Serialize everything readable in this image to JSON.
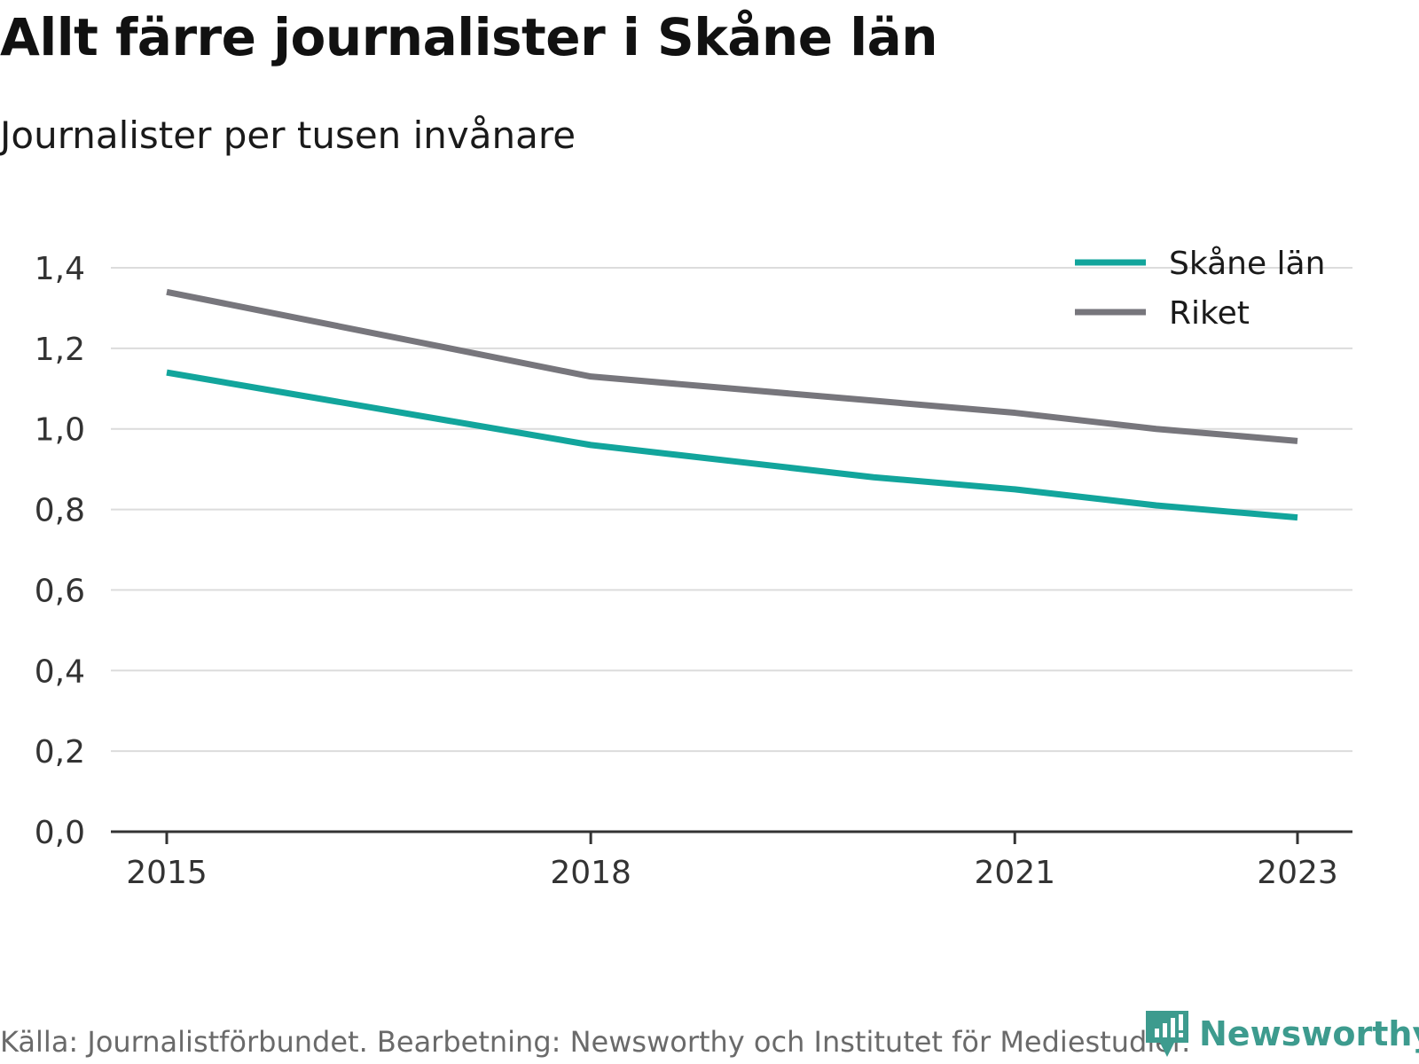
{
  "title": "Allt färre journalister i Skåne län",
  "subtitle": "Journalister per tusen invånare",
  "source": "Källa: Journalistförbundet. Bearbetning: Newsworthy och Institutet för Mediestudier.",
  "brand": {
    "name": "Newsworthy",
    "color": "#3d9b8e",
    "icon": "newsworthy-logo-icon"
  },
  "chart_data": {
    "type": "line",
    "x": [
      2015,
      2016,
      2017,
      2018,
      2019,
      2020,
      2021,
      2022,
      2023
    ],
    "x_ticks": [
      "2015",
      "2018",
      "2021",
      "2023"
    ],
    "y_ticks": [
      "0,0",
      "0,2",
      "0,4",
      "0,6",
      "0,8",
      "1,0",
      "1,2",
      "1,4"
    ],
    "ylim": [
      0,
      1.4
    ],
    "grid": true,
    "legend_position": "top-right",
    "series": [
      {
        "name": "Skåne län",
        "color": "#12a59c",
        "values": [
          1.14,
          1.08,
          1.02,
          0.96,
          0.92,
          0.88,
          0.85,
          0.81,
          0.78
        ]
      },
      {
        "name": "Riket",
        "color": "#77767c",
        "values": [
          1.34,
          1.27,
          1.2,
          1.13,
          1.1,
          1.07,
          1.04,
          1.0,
          0.97
        ]
      }
    ]
  }
}
